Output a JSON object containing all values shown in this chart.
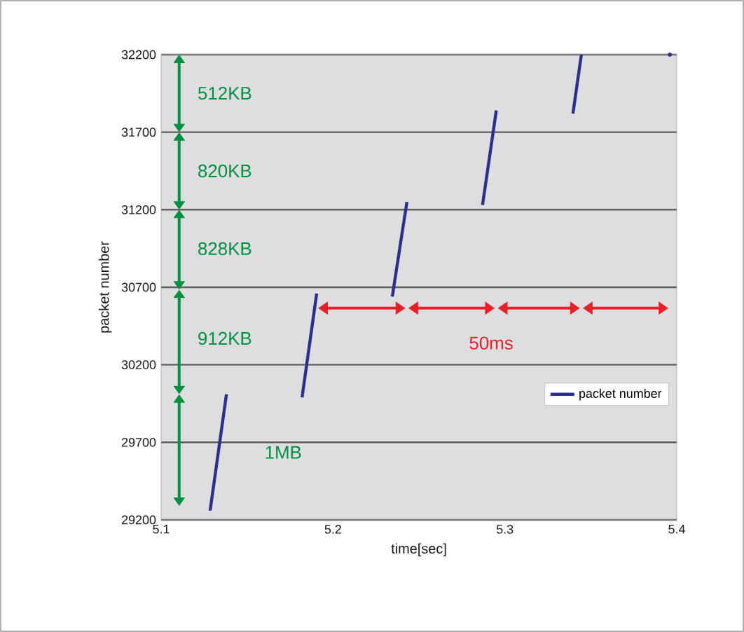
{
  "chart_data": {
    "type": "line",
    "xlabel": "time[sec]",
    "ylabel": "packet number",
    "xlim": [
      5.1,
      5.4
    ],
    "ylim": [
      29200,
      32200
    ],
    "xticks": [
      5.1,
      5.2,
      5.3,
      5.4
    ],
    "yticks": [
      29200,
      29700,
      30200,
      30700,
      31200,
      31700,
      32200
    ],
    "grid": "y",
    "legend": "right",
    "line_style": "solid",
    "series": [
      {
        "name": "packet number",
        "color": "#2e2f8c",
        "x": [
          5.1285,
          5.138,
          null,
          5.182,
          5.1905,
          null,
          5.2345,
          5.243,
          null,
          5.287,
          5.295,
          null,
          5.3396,
          5.3445
        ],
        "values": [
          29260,
          30010,
          null,
          29990,
          30660,
          null,
          30640,
          31250,
          null,
          31230,
          31840,
          null,
          31820,
          32200
        ]
      },
      {
        "type": "scatter",
        "marker": "circle",
        "color": "#2e2f8c",
        "x": [
          5.396
        ],
        "values": [
          32200
        ]
      }
    ],
    "annotations": [
      "512KB",
      "820KB",
      "828KB",
      "912KB",
      "1MB",
      "50ms"
    ]
  }
}
